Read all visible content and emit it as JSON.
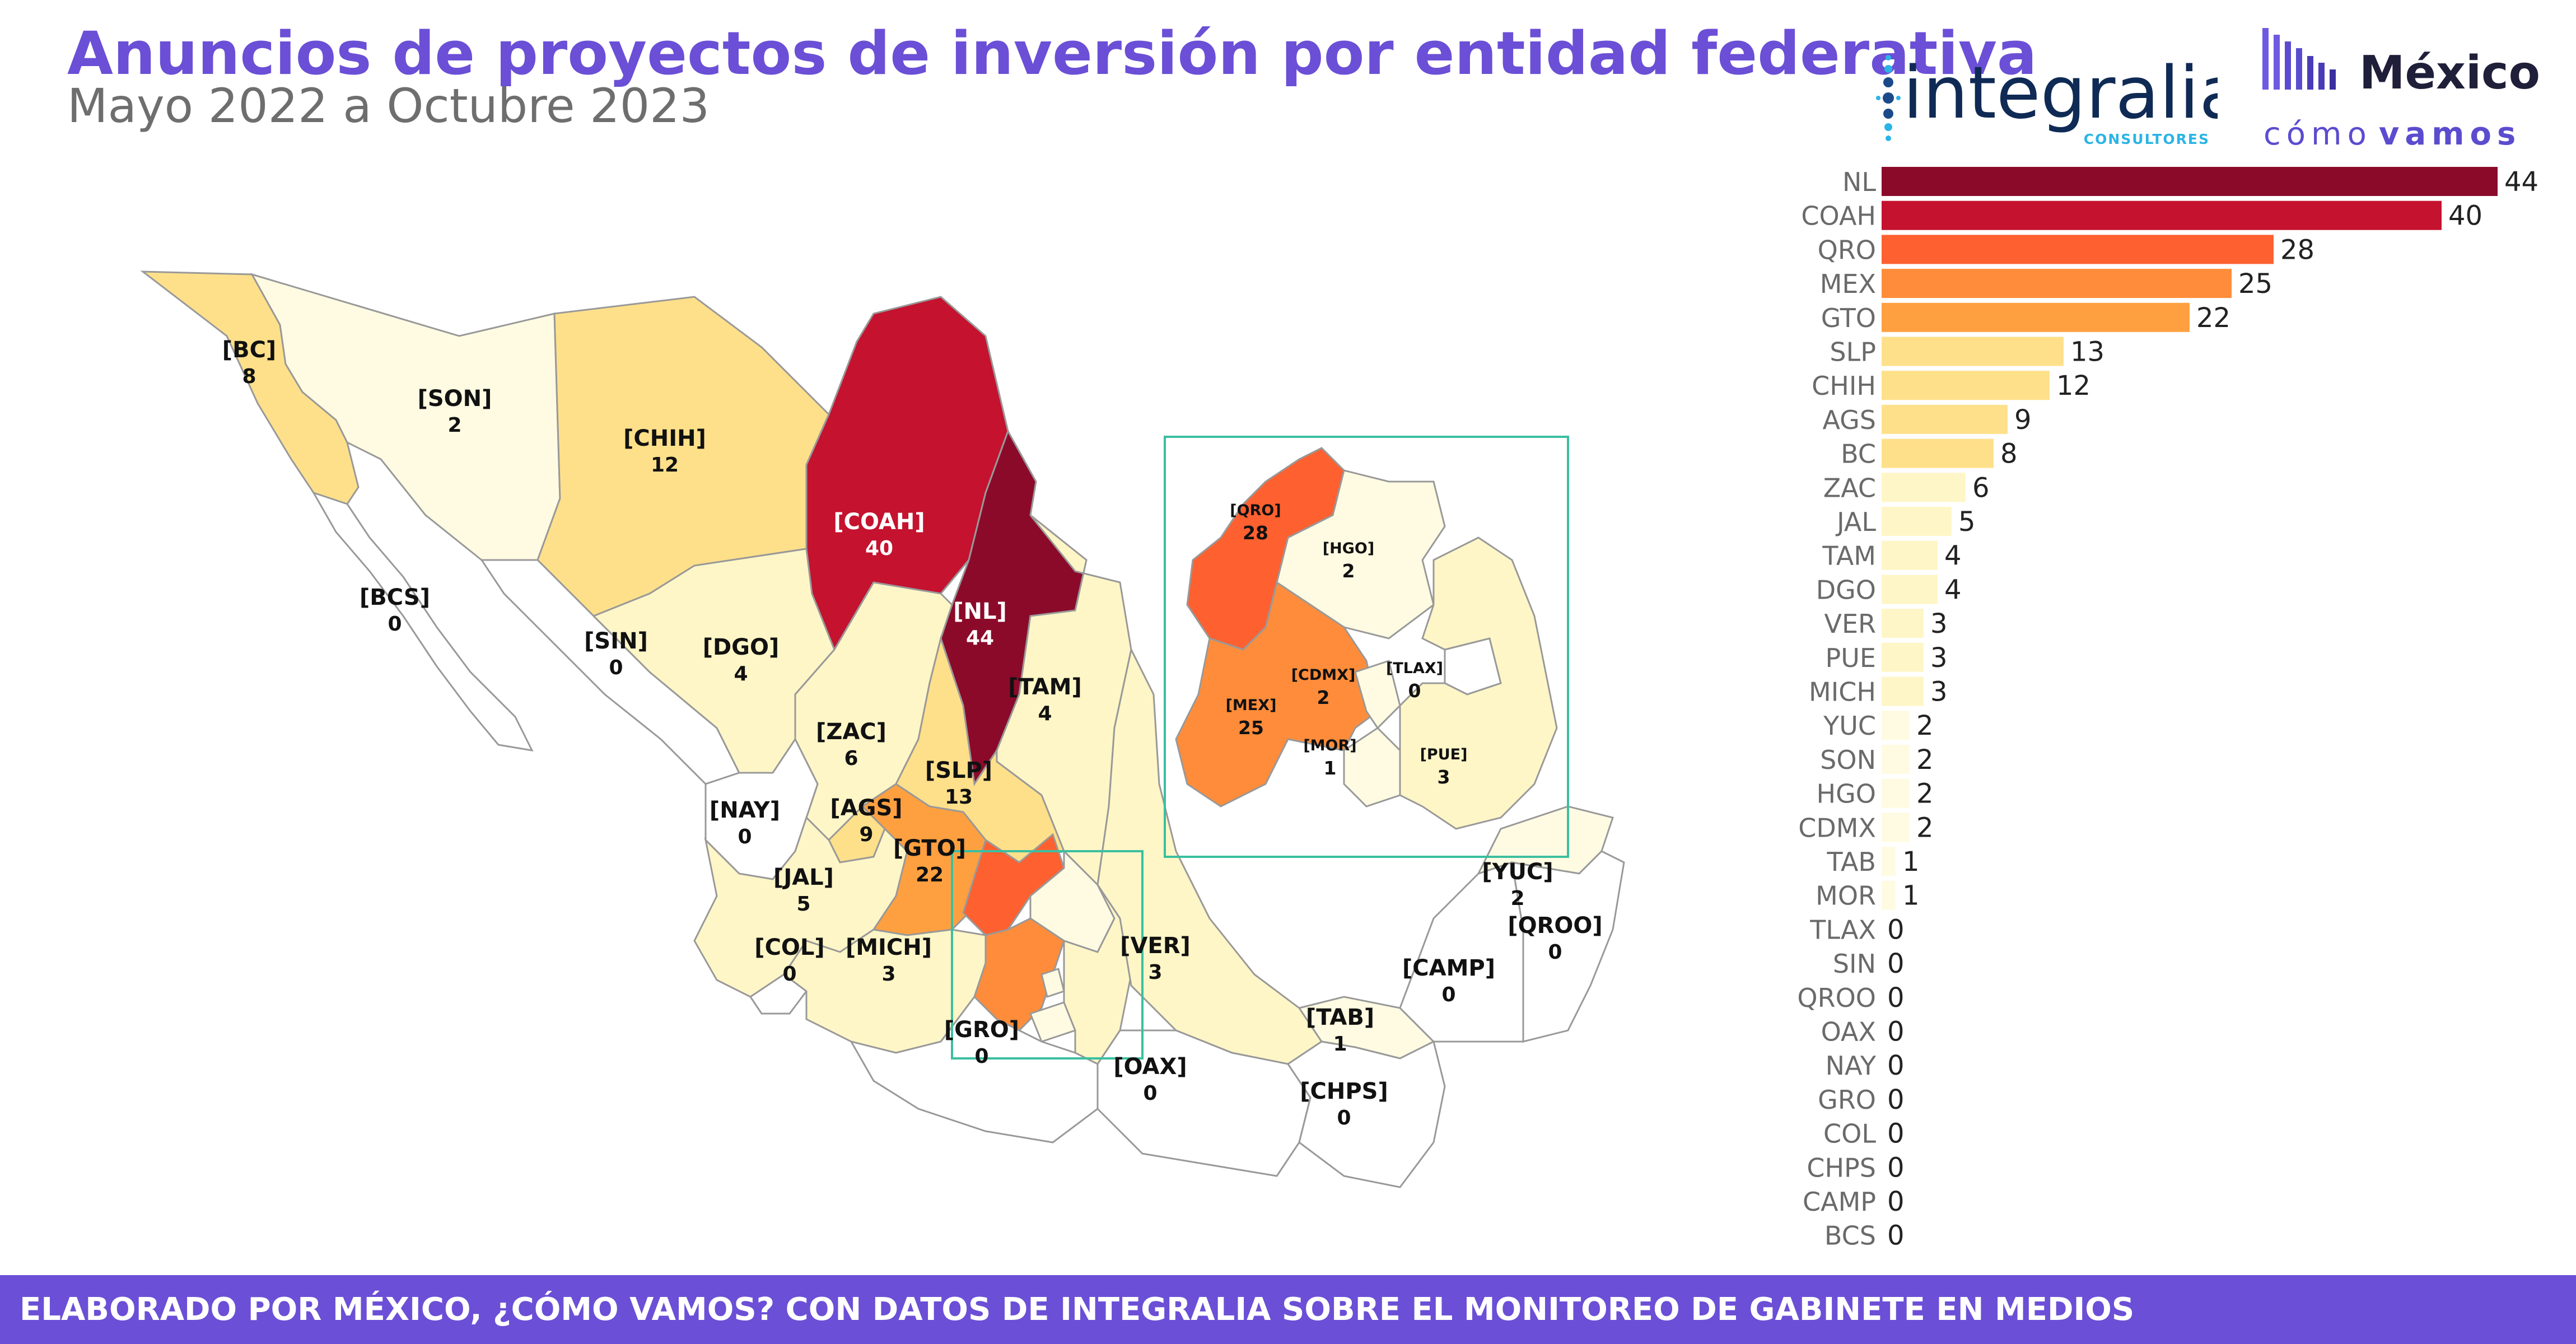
{
  "header": {
    "title": "Anuncios de proyectos de inversión por entidad federativa",
    "subtitle": "Mayo 2022 a Octubre 2023"
  },
  "logos": {
    "integralia_name": "integralia",
    "integralia_tagline": "CONSULTORES",
    "mcv_top": "México",
    "mcv_bottom_a": "cómo",
    "mcv_bottom_b": "vamos"
  },
  "footer": {
    "text": "ELABORADO POR MÉXICO, ¿CÓMO VAMOS? CON DATOS DE INTEGRALIA SOBRE EL MONITOREO DE GABINETE EN MEDIOS"
  },
  "colors": {
    "title": "#6b4fd6",
    "footer_bg": "#6b4fd6",
    "integralia": "#0f2a54",
    "integralia_accent": "#2ab4e6",
    "mcv": "#5b4ccf",
    "inset_border": "#3bbfa0",
    "scale": [
      "#ffffff",
      "#fffbe2",
      "#fff6c7",
      "#ffe08a",
      "#ffa040",
      "#ff8c3a",
      "#ff6030",
      "#c4122f",
      "#8b0a2a"
    ]
  },
  "chart_data": [
    {
      "type": "bar",
      "orientation": "horizontal",
      "categories": [
        "NL",
        "COAH",
        "QRO",
        "MEX",
        "GTO",
        "SLP",
        "CHIH",
        "AGS",
        "BC",
        "ZAC",
        "JAL",
        "TAM",
        "DGO",
        "VER",
        "PUE",
        "MICH",
        "YUC",
        "SON",
        "HGO",
        "CDMX",
        "TAB",
        "MOR",
        "TLAX",
        "SIN",
        "QROO",
        "OAX",
        "NAY",
        "GRO",
        "COL",
        "CHPS",
        "CAMP",
        "BCS"
      ],
      "values": [
        44,
        40,
        28,
        25,
        22,
        13,
        12,
        9,
        8,
        6,
        5,
        4,
        4,
        3,
        3,
        3,
        2,
        2,
        2,
        2,
        1,
        1,
        0,
        0,
        0,
        0,
        0,
        0,
        0,
        0,
        0,
        0
      ],
      "xlim": [
        0,
        44
      ],
      "grid": false,
      "legend": "none"
    },
    {
      "type": "choropleth",
      "regions": [
        {
          "code": "[BC]",
          "value": 8
        },
        {
          "code": "[SON]",
          "value": 2
        },
        {
          "code": "[CHIH]",
          "value": 12
        },
        {
          "code": "[COAH]",
          "value": 40
        },
        {
          "code": "[NL]",
          "value": 44
        },
        {
          "code": "[BCS]",
          "value": 0
        },
        {
          "code": "[SIN]",
          "value": 0
        },
        {
          "code": "[DGO]",
          "value": 4
        },
        {
          "code": "[TAM]",
          "value": 4
        },
        {
          "code": "[ZAC]",
          "value": 6
        },
        {
          "code": "[SLP]",
          "value": 13
        },
        {
          "code": "[AGS]",
          "value": 9
        },
        {
          "code": "[NAY]",
          "value": 0
        },
        {
          "code": "[GTO]",
          "value": 22
        },
        {
          "code": "[JAL]",
          "value": 5
        },
        {
          "code": "[COL]",
          "value": 0
        },
        {
          "code": "[MICH]",
          "value": 3
        },
        {
          "code": "[VER]",
          "value": 3
        },
        {
          "code": "[GRO]",
          "value": 0
        },
        {
          "code": "[OAX]",
          "value": 0
        },
        {
          "code": "[TAB]",
          "value": 1
        },
        {
          "code": "[CHPS]",
          "value": 0
        },
        {
          "code": "[CAMP]",
          "value": 0
        },
        {
          "code": "[YUC]",
          "value": 2
        },
        {
          "code": "[QROO]",
          "value": 0
        }
      ],
      "inset_regions": [
        {
          "code": "[QRO]",
          "value": 28
        },
        {
          "code": "[HGO]",
          "value": 2
        },
        {
          "code": "[CDMX]",
          "value": 2
        },
        {
          "code": "[TLAX]",
          "value": 0
        },
        {
          "code": "[MEX]",
          "value": 25
        },
        {
          "code": "[MOR]",
          "value": 1
        },
        {
          "code": "[PUE]",
          "value": 3
        }
      ]
    }
  ]
}
